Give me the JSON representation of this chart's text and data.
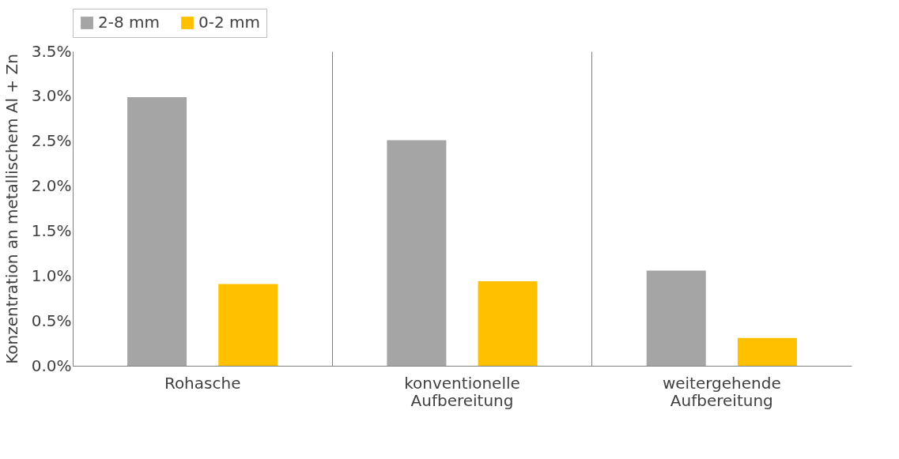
{
  "chart_data": {
    "type": "bar",
    "ylabel": "Konzentration an metallischem Al + Zn",
    "categories": [
      "Rohasche",
      "konventionelle Aufbereitung",
      "weitergehende Aufbereitung"
    ],
    "series": [
      {
        "name": "2-8 mm",
        "color": "#a5a5a5",
        "values": [
          2.99,
          2.51,
          1.06
        ]
      },
      {
        "name": "0-2 mm",
        "color": "#ffc000",
        "values": [
          0.91,
          0.94,
          0.31
        ]
      }
    ],
    "ylim": [
      0,
      3.5
    ],
    "yticks": [
      {
        "value": 0,
        "label": "0.0%"
      },
      {
        "value": 0.5,
        "label": "0.5%"
      },
      {
        "value": 1,
        "label": "1.0%"
      },
      {
        "value": 1.5,
        "label": "1.5%"
      },
      {
        "value": 2,
        "label": "2.0%"
      },
      {
        "value": 2.5,
        "label": "2.5%"
      },
      {
        "value": 3,
        "label": "3.0%"
      },
      {
        "value": 3.5,
        "label": "3.5%"
      }
    ],
    "grid": "x",
    "legend": "top"
  }
}
